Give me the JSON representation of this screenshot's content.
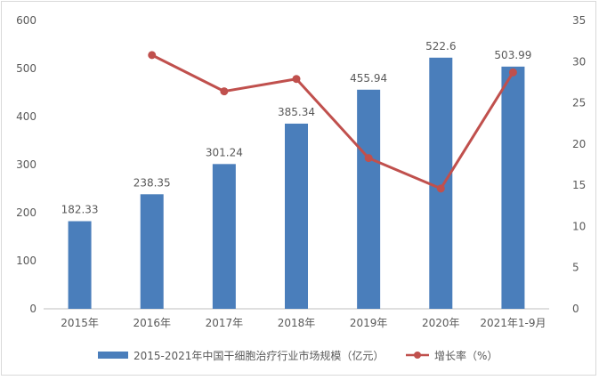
{
  "chart_data": {
    "type": "bar",
    "categories": [
      "2015年",
      "2016年",
      "2017年",
      "2018年",
      "2019年",
      "2020年",
      "2021年1-9月"
    ],
    "series": [
      {
        "name": "2015-2021年中国干细胞治疗行业市场规模（亿元）",
        "type": "bar",
        "axis": "left",
        "values": [
          182.33,
          238.35,
          301.24,
          385.34,
          455.94,
          522.6,
          503.99
        ],
        "labels": [
          "182.33",
          "238.35",
          "301.24",
          "385.34",
          "455.94",
          "522.6",
          "503.99"
        ],
        "color": "#4a7ebb"
      },
      {
        "name": "增长率（%）",
        "type": "line",
        "axis": "right",
        "values": [
          null,
          30.8,
          26.4,
          27.9,
          18.3,
          14.6,
          28.7
        ],
        "color": "#c0504d"
      }
    ],
    "y_left": {
      "ylim": [
        0,
        600
      ],
      "ticks": [
        "0",
        "100",
        "200",
        "300",
        "400",
        "500",
        "600"
      ]
    },
    "y_right": {
      "ylim": [
        0,
        35
      ],
      "ticks": [
        "0",
        "5",
        "10",
        "15",
        "20",
        "25",
        "30",
        "35"
      ]
    },
    "grid": false,
    "legend_position": "bottom"
  }
}
